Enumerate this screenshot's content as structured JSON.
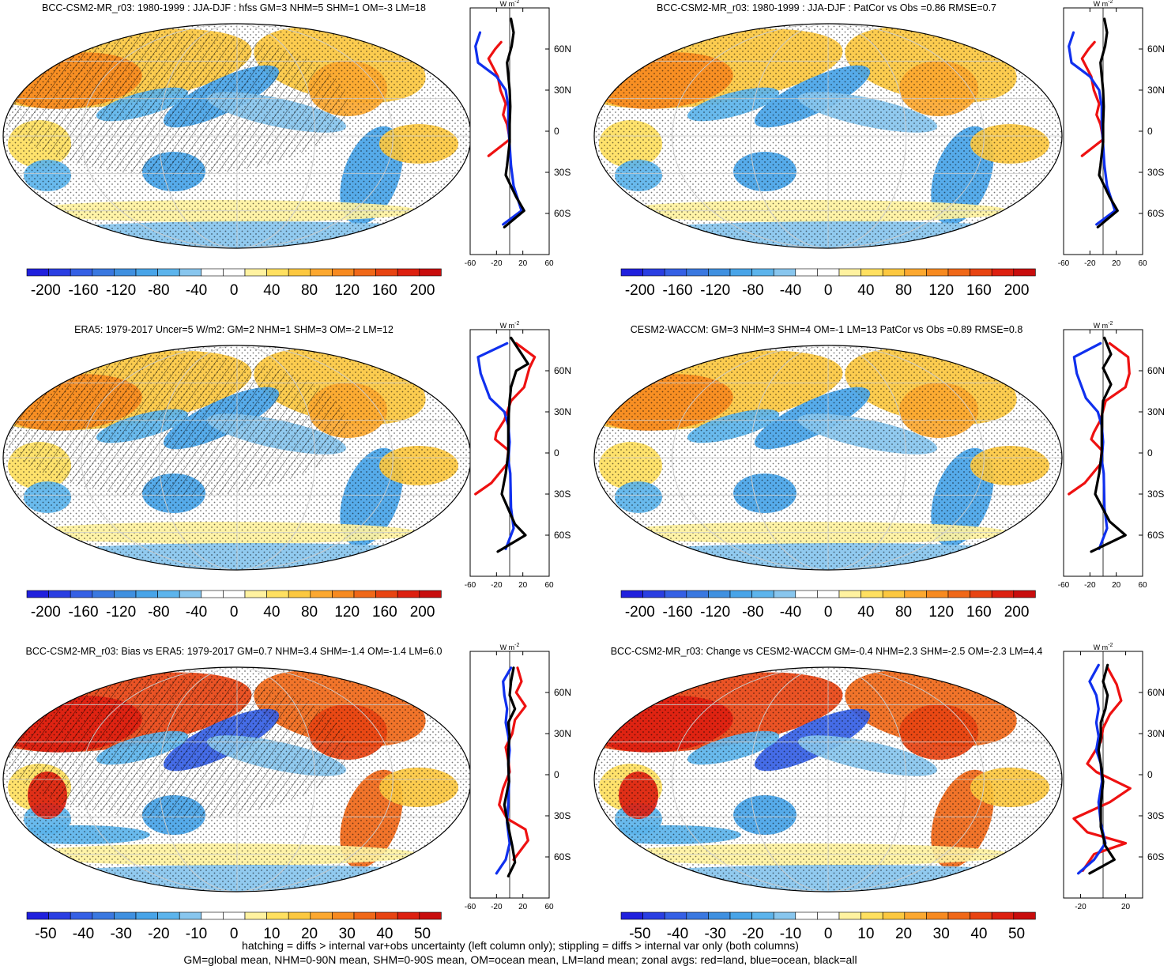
{
  "footnote": {
    "line1": "hatching = diffs > internal var+obs uncertainty (left column only); stippling = diffs > internal var only (both columns)",
    "line2": "GM=global mean, NHM=0-90N mean, SHM=0-90S mean, OM=ocean mean, LM=land mean; zonal avgs: red=land, blue=ocean, black=all"
  },
  "colors": {
    "land": "#ee1111",
    "ocean": "#1030ee",
    "all": "#000000",
    "colorbar": [
      "#2020dd",
      "#2a3ee2",
      "#3560e5",
      "#3a78e0",
      "#3f90e0",
      "#48a4e8",
      "#5cb4ec",
      "#88c6ee",
      "#ffffff",
      "#ffffff",
      "#fff2a0",
      "#ffe060",
      "#fcc840",
      "#fca830",
      "#f78a20",
      "#f06818",
      "#e84412",
      "#dd2010",
      "#c80d0d"
    ]
  },
  "zonal_ylabels": [
    "60N",
    "30N",
    "0",
    "30S",
    "60S"
  ],
  "zonal_unit": "W m",
  "zonal_unit_sup": "-2",
  "chart_data": [
    {
      "type": "heatmap",
      "title": "BCC-CSM2-MR_r03: 1980-1999 : JJA-DJF : hfss GM=3 NHM=5 SHM=1 OM=-3 LM=18",
      "colorbar_ticks": [
        "-200",
        "-160",
        "-120",
        "-80",
        "-40",
        "0",
        "40",
        "80",
        "120",
        "160",
        "200"
      ],
      "zonal": {
        "x_ticks": [
          "-60",
          "-20",
          "20",
          "60"
        ],
        "xlim": [
          -60,
          60
        ],
        "land": [
          [
            -13,
            65
          ],
          [
            -22,
            60
          ],
          [
            -32,
            53
          ],
          [
            -18,
            40
          ],
          [
            -14,
            30
          ],
          [
            -6,
            20
          ],
          [
            -10,
            12
          ],
          [
            -4,
            5
          ],
          [
            -2,
            0
          ],
          [
            0,
            -6
          ],
          [
            -16,
            -12
          ],
          [
            -32,
            -18
          ]
        ],
        "ocean": [
          [
            -45,
            72
          ],
          [
            -52,
            62
          ],
          [
            -48,
            50
          ],
          [
            -20,
            40
          ],
          [
            -6,
            30
          ],
          [
            -2,
            18
          ],
          [
            -2,
            5
          ],
          [
            0,
            -10
          ],
          [
            2,
            -25
          ],
          [
            6,
            -40
          ],
          [
            18,
            -58
          ],
          [
            -10,
            -68
          ]
        ],
        "all": [
          [
            2,
            82
          ],
          [
            6,
            72
          ],
          [
            3,
            62
          ],
          [
            -4,
            50
          ],
          [
            -2,
            40
          ],
          [
            0,
            30
          ],
          [
            1,
            18
          ],
          [
            0,
            5
          ],
          [
            0,
            -8
          ],
          [
            -4,
            -25
          ],
          [
            -6,
            -32
          ],
          [
            10,
            -48
          ],
          [
            22,
            -58
          ],
          [
            -8,
            -70
          ]
        ]
      }
    },
    {
      "type": "heatmap",
      "title": "BCC-CSM2-MR_r03: 1980-1999 : JJA-DJF : PatCor vs Obs =0.86 RMSE=0.7",
      "colorbar_ticks": [
        "-200",
        "-160",
        "-120",
        "-80",
        "-40",
        "0",
        "40",
        "80",
        "120",
        "160",
        "200"
      ],
      "zonal": {
        "x_ticks": [
          "-60",
          "-20",
          "20",
          "60"
        ],
        "xlim": [
          -60,
          60
        ],
        "land": [
          [
            -13,
            65
          ],
          [
            -22,
            60
          ],
          [
            -32,
            53
          ],
          [
            -18,
            40
          ],
          [
            -14,
            30
          ],
          [
            -6,
            20
          ],
          [
            -10,
            12
          ],
          [
            -4,
            5
          ],
          [
            -2,
            0
          ],
          [
            0,
            -6
          ],
          [
            -16,
            -12
          ],
          [
            -32,
            -18
          ]
        ],
        "ocean": [
          [
            -45,
            72
          ],
          [
            -52,
            62
          ],
          [
            -48,
            50
          ],
          [
            -20,
            40
          ],
          [
            -6,
            30
          ],
          [
            -2,
            18
          ],
          [
            -2,
            5
          ],
          [
            0,
            -10
          ],
          [
            2,
            -25
          ],
          [
            6,
            -40
          ],
          [
            18,
            -58
          ],
          [
            -10,
            -68
          ]
        ],
        "all": [
          [
            2,
            82
          ],
          [
            6,
            72
          ],
          [
            3,
            62
          ],
          [
            -4,
            50
          ],
          [
            -2,
            40
          ],
          [
            0,
            30
          ],
          [
            1,
            18
          ],
          [
            0,
            5
          ],
          [
            0,
            -8
          ],
          [
            -4,
            -25
          ],
          [
            -6,
            -32
          ],
          [
            10,
            -48
          ],
          [
            22,
            -58
          ],
          [
            -8,
            -70
          ]
        ]
      }
    },
    {
      "type": "heatmap",
      "title": "ERA5: 1979-2017 Uncer=5 W/m2: GM=2 NHM=1 SHM=3 OM=-2 LM=12",
      "colorbar_ticks": [
        "-200",
        "-160",
        "-120",
        "-80",
        "-40",
        "0",
        "40",
        "80",
        "120",
        "160",
        "200"
      ],
      "zonal": {
        "x_ticks": [
          "-60",
          "-20",
          "20",
          "60"
        ],
        "xlim": [
          -60,
          60
        ],
        "land": [
          [
            10,
            80
          ],
          [
            38,
            70
          ],
          [
            30,
            62
          ],
          [
            22,
            48
          ],
          [
            2,
            38
          ],
          [
            -8,
            24
          ],
          [
            -20,
            15
          ],
          [
            -22,
            10
          ],
          [
            -2,
            2
          ],
          [
            -4,
            -8
          ],
          [
            -28,
            -22
          ],
          [
            -52,
            -30
          ]
        ],
        "ocean": [
          [
            -4,
            80
          ],
          [
            -48,
            70
          ],
          [
            -44,
            58
          ],
          [
            -30,
            40
          ],
          [
            -8,
            30
          ],
          [
            -2,
            20
          ],
          [
            0,
            8
          ],
          [
            -2,
            -5
          ],
          [
            1,
            -15
          ],
          [
            2,
            -40
          ],
          [
            6,
            -55
          ],
          [
            -6,
            -70
          ]
        ],
        "all": [
          [
            2,
            84
          ],
          [
            28,
            65
          ],
          [
            10,
            60
          ],
          [
            2,
            48
          ],
          [
            0,
            38
          ],
          [
            -2,
            24
          ],
          [
            -2,
            10
          ],
          [
            -2,
            0
          ],
          [
            -6,
            -15
          ],
          [
            -12,
            -30
          ],
          [
            8,
            -52
          ],
          [
            24,
            -60
          ],
          [
            -18,
            -72
          ]
        ]
      }
    },
    {
      "type": "heatmap",
      "title": "CESM2-WACCM: GM=3 NHM=3 SHM=4 OM=-1 LM=13 PatCor vs Obs =0.89 RMSE=0.8",
      "colorbar_ticks": [
        "-200",
        "-160",
        "-120",
        "-80",
        "-40",
        "0",
        "40",
        "80",
        "120",
        "160",
        "200"
      ],
      "zonal": {
        "x_ticks": [
          "-60",
          "-20",
          "20",
          "60"
        ],
        "xlim": [
          -60,
          60
        ],
        "land": [
          [
            10,
            80
          ],
          [
            38,
            70
          ],
          [
            40,
            58
          ],
          [
            34,
            48
          ],
          [
            4,
            38
          ],
          [
            -4,
            24
          ],
          [
            -14,
            15
          ],
          [
            -18,
            10
          ],
          [
            -2,
            2
          ],
          [
            -4,
            -8
          ],
          [
            -28,
            -22
          ],
          [
            -52,
            -30
          ]
        ],
        "ocean": [
          [
            -4,
            80
          ],
          [
            -44,
            70
          ],
          [
            -40,
            58
          ],
          [
            -26,
            40
          ],
          [
            -8,
            30
          ],
          [
            -2,
            20
          ],
          [
            0,
            8
          ],
          [
            -2,
            -5
          ],
          [
            1,
            -15
          ],
          [
            2,
            -40
          ],
          [
            6,
            -55
          ],
          [
            -6,
            -70
          ]
        ],
        "all": [
          [
            2,
            84
          ],
          [
            12,
            72
          ],
          [
            0,
            62
          ],
          [
            12,
            50
          ],
          [
            0,
            38
          ],
          [
            -2,
            24
          ],
          [
            -2,
            10
          ],
          [
            -2,
            0
          ],
          [
            -6,
            -15
          ],
          [
            -12,
            -30
          ],
          [
            10,
            -50
          ],
          [
            34,
            -60
          ],
          [
            -18,
            -72
          ]
        ]
      }
    },
    {
      "type": "heatmap",
      "title": "BCC-CSM2-MR_r03: Bias vs ERA5: 1979-2017 GM=0.7 NHM=3.4 SHM=-1.4 OM=-1.4 LM=6.0",
      "colorbar_ticks": [
        "-50",
        "-40",
        "-30",
        "-20",
        "-10",
        "0",
        "10",
        "20",
        "30",
        "40",
        "50"
      ],
      "zonal": {
        "x_ticks": [
          "-60",
          "-20",
          "20",
          "60"
        ],
        "xlim": [
          -60,
          60
        ],
        "land": [
          [
            12,
            78
          ],
          [
            18,
            68
          ],
          [
            10,
            60
          ],
          [
            24,
            50
          ],
          [
            8,
            40
          ],
          [
            4,
            30
          ],
          [
            -6,
            20
          ],
          [
            -2,
            10
          ],
          [
            0,
            2
          ],
          [
            -10,
            -10
          ],
          [
            -16,
            -22
          ],
          [
            -4,
            -32
          ],
          [
            24,
            -40
          ],
          [
            28,
            -48
          ],
          [
            6,
            -62
          ]
        ],
        "ocean": [
          [
            2,
            78
          ],
          [
            -10,
            68
          ],
          [
            -8,
            58
          ],
          [
            -4,
            48
          ],
          [
            -6,
            38
          ],
          [
            -2,
            28
          ],
          [
            0,
            18
          ],
          [
            -2,
            8
          ],
          [
            -1,
            -5
          ],
          [
            -2,
            -20
          ],
          [
            -4,
            -35
          ],
          [
            0,
            -50
          ],
          [
            -6,
            -62
          ],
          [
            -20,
            -72
          ]
        ],
        "all": [
          [
            6,
            78
          ],
          [
            2,
            68
          ],
          [
            0,
            58
          ],
          [
            8,
            48
          ],
          [
            -2,
            38
          ],
          [
            0,
            28
          ],
          [
            -2,
            18
          ],
          [
            -2,
            8
          ],
          [
            -1,
            -5
          ],
          [
            -8,
            -22
          ],
          [
            -2,
            -38
          ],
          [
            4,
            -52
          ],
          [
            8,
            -64
          ],
          [
            -2,
            -74
          ]
        ]
      }
    },
    {
      "type": "heatmap",
      "title": "BCC-CSM2-MR_r03: Change vs CESM2-WACCM GM=-0.4 NHM=2.3 SHM=-2.5 OM=-2.3 LM=4.4",
      "colorbar_ticks": [
        "-50",
        "-40",
        "-30",
        "-20",
        "-10",
        "0",
        "10",
        "20",
        "30",
        "40",
        "50"
      ],
      "zonal": {
        "x_ticks": [
          "-20",
          "20"
        ],
        "xlim": [
          -35,
          35
        ],
        "land": [
          [
            4,
            78
          ],
          [
            12,
            66
          ],
          [
            16,
            54
          ],
          [
            6,
            44
          ],
          [
            0,
            34
          ],
          [
            -2,
            24
          ],
          [
            -14,
            8
          ],
          [
            -6,
            2
          ],
          [
            24,
            -10
          ],
          [
            6,
            -20
          ],
          [
            -26,
            -32
          ],
          [
            -14,
            -42
          ],
          [
            20,
            -50
          ],
          [
            -8,
            -58
          ],
          [
            -18,
            -70
          ]
        ],
        "ocean": [
          [
            -4,
            80
          ],
          [
            -12,
            68
          ],
          [
            -6,
            58
          ],
          [
            -4,
            48
          ],
          [
            -6,
            38
          ],
          [
            -4,
            28
          ],
          [
            -6,
            18
          ],
          [
            -2,
            8
          ],
          [
            -1,
            -5
          ],
          [
            -4,
            -20
          ],
          [
            -2,
            -35
          ],
          [
            2,
            -50
          ],
          [
            -8,
            -62
          ],
          [
            -22,
            -72
          ]
        ],
        "all": [
          [
            4,
            80
          ],
          [
            0,
            68
          ],
          [
            4,
            58
          ],
          [
            2,
            48
          ],
          [
            -2,
            38
          ],
          [
            -2,
            28
          ],
          [
            -4,
            18
          ],
          [
            -2,
            8
          ],
          [
            0,
            -5
          ],
          [
            -2,
            -22
          ],
          [
            -2,
            -38
          ],
          [
            2,
            -52
          ],
          [
            10,
            -62
          ],
          [
            -12,
            -72
          ]
        ]
      }
    }
  ]
}
